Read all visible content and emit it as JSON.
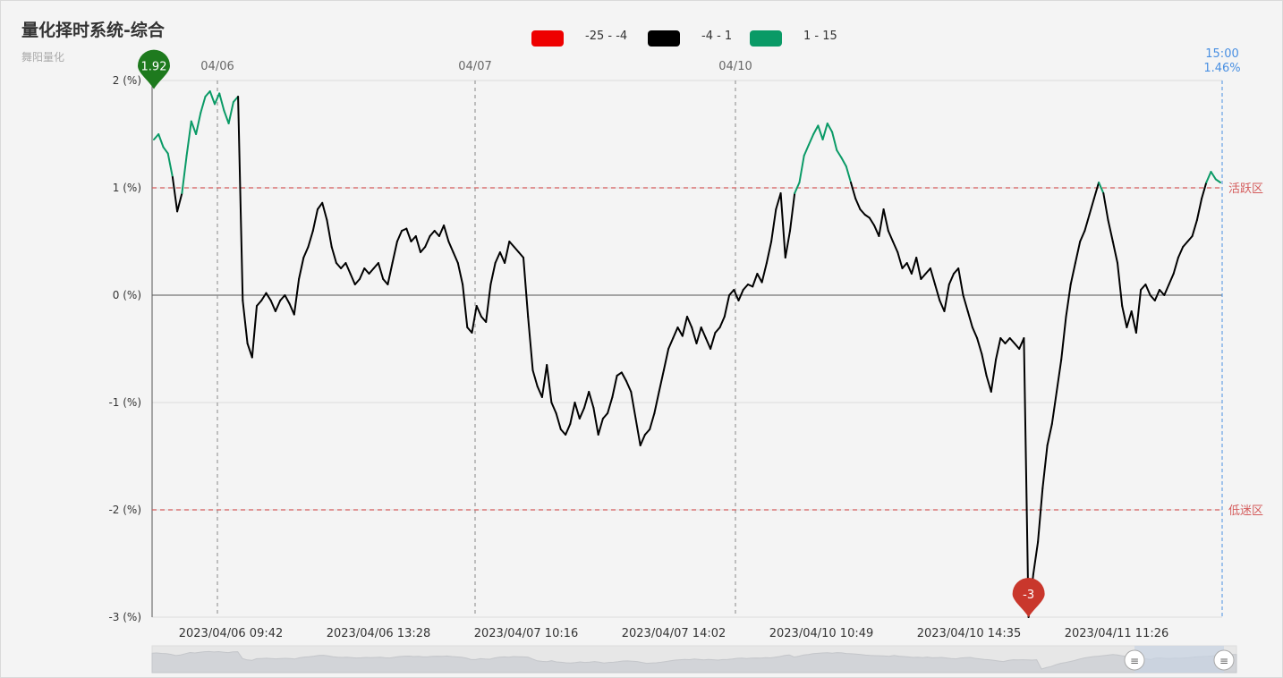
{
  "header": {
    "title": "量化择时系统-综合",
    "subtitle": "舞阳量化"
  },
  "legend": [
    {
      "label": "-25 - -4",
      "color": "#ee0000"
    },
    {
      "label": "-4 - 1",
      "color": "#000000"
    },
    {
      "label": "1 - 15",
      "color": "#0a9a66"
    }
  ],
  "colors": {
    "low": "#ee0000",
    "mid": "#000000",
    "high": "#0a9a66",
    "band_line": "#d45b5b",
    "cursor": "#4a90e2",
    "pin_max": "#1e7a1e",
    "pin_min": "#c9372c"
  },
  "chart_data": {
    "type": "line",
    "ylim": [
      -3,
      2
    ],
    "y_ticks": [
      "2 (%)",
      "1 (%)",
      "0 (%)",
      "-1 (%)",
      "-2 (%)",
      "-3 (%)"
    ],
    "x_tick_labels": [
      "2023/04/06 09:42",
      "2023/04/06 13:28",
      "2023/04/07 10:16",
      "2023/04/07 14:02",
      "2023/04/10 10:49",
      "2023/04/10 14:35",
      "2023/04/11 11:26"
    ],
    "day_markers": [
      "04/06",
      "04/07",
      "04/10"
    ],
    "thresholds": [
      {
        "value": 1,
        "label": "活跃区"
      },
      {
        "value": -2,
        "label": "低迷区"
      }
    ],
    "max_marker": {
      "label": "1.92",
      "value": 1.92
    },
    "min_marker": {
      "label": "-3",
      "value": -3
    },
    "cursor": {
      "time": "15:00",
      "value": "1.46%"
    },
    "series": [
      {
        "values": [
          1.45,
          1.5,
          1.38,
          1.32,
          1.1,
          0.78,
          0.95,
          1.3,
          1.62,
          1.5,
          1.7,
          1.85,
          1.9,
          1.78,
          1.88,
          1.72,
          1.6,
          1.8,
          1.85,
          -0.05,
          -0.45,
          -0.58,
          -0.1,
          -0.05,
          0.02,
          -0.05,
          -0.15,
          -0.05,
          0.0,
          -0.08,
          -0.18,
          0.15,
          0.35,
          0.45,
          0.6,
          0.8,
          0.86,
          0.7,
          0.45,
          0.3,
          0.25,
          0.3,
          0.2,
          0.1,
          0.15,
          0.25,
          0.2,
          0.25,
          0.3,
          0.15,
          0.1,
          0.3,
          0.5,
          0.6,
          0.62,
          0.5,
          0.55,
          0.4,
          0.45,
          0.55,
          0.6,
          0.55,
          0.65,
          0.5,
          0.4,
          0.3,
          0.1,
          -0.3,
          -0.35,
          -0.1,
          -0.2,
          -0.25,
          0.1,
          0.3,
          0.4,
          0.3,
          0.5,
          0.45,
          0.4,
          0.35,
          -0.2,
          -0.7,
          -0.85,
          -0.95,
          -0.65,
          -1.0,
          -1.1,
          -1.25,
          -1.3,
          -1.2,
          -1.0,
          -1.15,
          -1.05,
          -0.9,
          -1.05,
          -1.3,
          -1.15,
          -1.1,
          -0.95,
          -0.75,
          -0.72,
          -0.8,
          -0.9,
          -1.15,
          -1.4,
          -1.3,
          -1.25,
          -1.1,
          -0.9,
          -0.7,
          -0.5,
          -0.4,
          -0.3,
          -0.38,
          -0.2,
          -0.3,
          -0.45,
          -0.3,
          -0.4,
          -0.5,
          -0.35,
          -0.3,
          -0.2,
          0.0,
          0.05,
          -0.05,
          0.05,
          0.1,
          0.08,
          0.2,
          0.12,
          0.3,
          0.5,
          0.8,
          0.95,
          0.35,
          0.6,
          0.95,
          1.05,
          1.3,
          1.4,
          1.5,
          1.58,
          1.45,
          1.6,
          1.52,
          1.35,
          1.28,
          1.2,
          1.05,
          0.9,
          0.8,
          0.75,
          0.72,
          0.65,
          0.55,
          0.8,
          0.6,
          0.5,
          0.4,
          0.25,
          0.3,
          0.2,
          0.35,
          0.15,
          0.2,
          0.25,
          0.1,
          -0.05,
          -0.15,
          0.1,
          0.2,
          0.25,
          0.0,
          -0.15,
          -0.3,
          -0.4,
          -0.55,
          -0.75,
          -0.9,
          -0.6,
          -0.4,
          -0.45,
          -0.4,
          -0.45,
          -0.5,
          -0.4,
          -3.0,
          -2.6,
          -2.3,
          -1.8,
          -1.4,
          -1.2,
          -0.9,
          -0.6,
          -0.2,
          0.1,
          0.3,
          0.5,
          0.6,
          0.75,
          0.9,
          1.05,
          0.95,
          0.7,
          0.5,
          0.3,
          -0.1,
          -0.3,
          -0.15,
          -0.35,
          0.05,
          0.1,
          0.0,
          -0.05,
          0.05,
          0.0,
          0.1,
          0.2,
          0.35,
          0.45,
          0.5,
          0.55,
          0.7,
          0.9,
          1.05,
          1.15,
          1.08,
          1.05
        ]
      }
    ]
  },
  "zoom_slider": {}
}
